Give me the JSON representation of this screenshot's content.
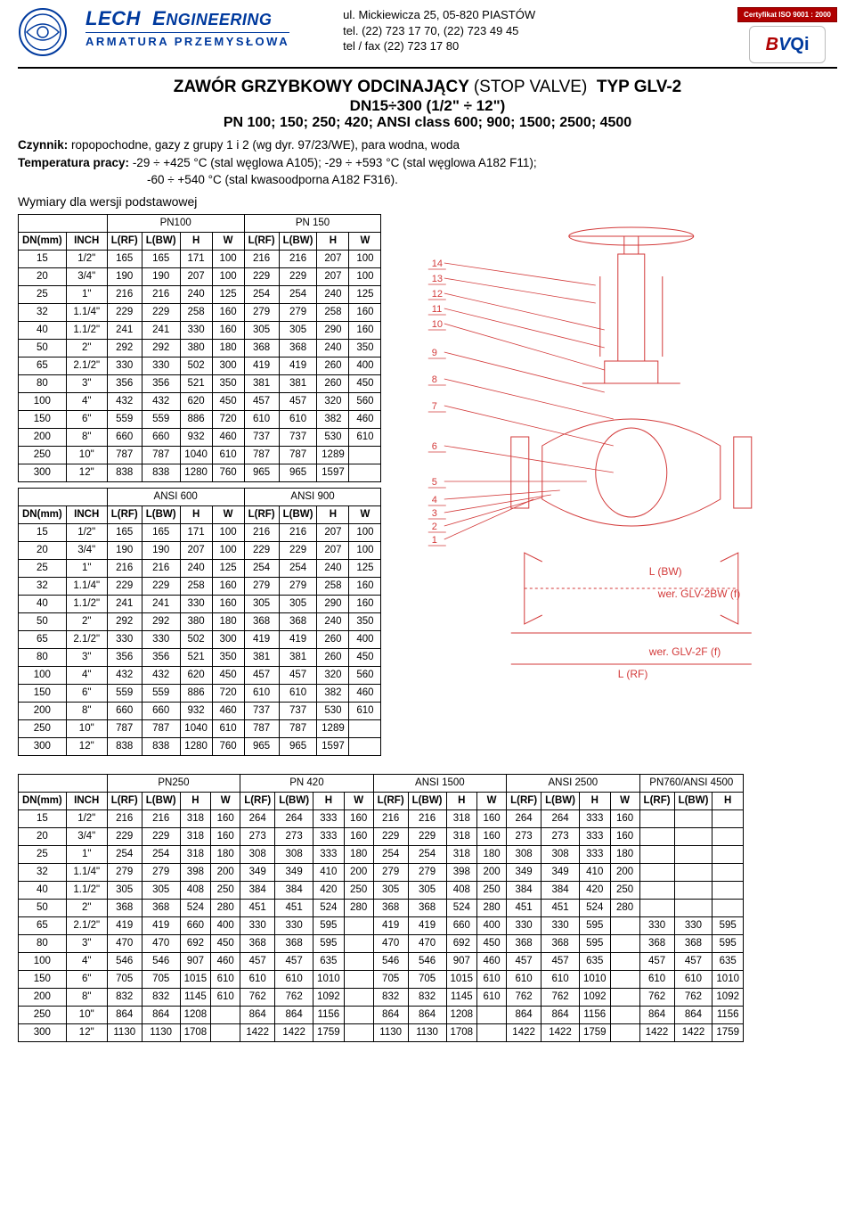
{
  "header": {
    "company_name_a": "LECH",
    "company_name_b": "E",
    "company_name_c": "NGINEERING",
    "company_sub": "ARMATURA PRZEMYSŁOWA",
    "address_l1": "ul. Mickiewicza 25,  05-820 PIASTÓW",
    "address_l2": "tel. (22) 723 17 70,  (22) 723 49 45",
    "address_l3": "tel / fax  (22) 723 17 80",
    "cert_text": "Certyfikat ISO 9001 : 2000",
    "bvqi_b": "B",
    "bvqi_v": "V",
    "bvqi_qi": "Qi"
  },
  "title": {
    "l1a": "ZAWÓR GRZYBKOWY ODCINAJĄCY",
    "l1b": "(STOP VALVE)",
    "l1c": "TYP GLV-2",
    "l2": "DN15÷300  (1/2\" ÷ 12\")",
    "l3": "PN 100; 150; 250; 420;    ANSI class 600; 900; 1500; 2500; 4500"
  },
  "spec": {
    "l1a": "Czynnik:",
    "l1b": "ropopochodne, gazy z grupy 1 i 2 (wg dyr. 97/23/WE), para wodna, woda",
    "l2a": "Temperatura pracy:",
    "l2b": "-29 ÷ +425 °C  (stal węglowa A105);  -29 ÷ +593 °C (stal węglowa A182 F11);",
    "l3": "-60 ÷ +540 °C  (stal kwasoodporna A182 F316)."
  },
  "section_label": "Wymiary dla wersji podstawowej",
  "table1": {
    "group_a": "PN100",
    "group_b": "PN 150",
    "headers": [
      "DN(mm)",
      "INCH",
      "L(RF)",
      "L(BW)",
      "H",
      "W",
      "L(RF)",
      "L(BW)",
      "H",
      "W"
    ],
    "rows": [
      [
        "15",
        "1/2\"",
        "165",
        "165",
        "171",
        "100",
        "216",
        "216",
        "207",
        "100"
      ],
      [
        "20",
        "3/4\"",
        "190",
        "190",
        "207",
        "100",
        "229",
        "229",
        "207",
        "100"
      ],
      [
        "25",
        "1\"",
        "216",
        "216",
        "240",
        "125",
        "254",
        "254",
        "240",
        "125"
      ],
      [
        "32",
        "1.1/4\"",
        "229",
        "229",
        "258",
        "160",
        "279",
        "279",
        "258",
        "160"
      ],
      [
        "40",
        "1.1/2\"",
        "241",
        "241",
        "330",
        "160",
        "305",
        "305",
        "290",
        "160"
      ],
      [
        "50",
        "2\"",
        "292",
        "292",
        "380",
        "180",
        "368",
        "368",
        "240",
        "350"
      ],
      [
        "65",
        "2.1/2\"",
        "330",
        "330",
        "502",
        "300",
        "419",
        "419",
        "260",
        "400"
      ],
      [
        "80",
        "3\"",
        "356",
        "356",
        "521",
        "350",
        "381",
        "381",
        "260",
        "450"
      ],
      [
        "100",
        "4\"",
        "432",
        "432",
        "620",
        "450",
        "457",
        "457",
        "320",
        "560"
      ],
      [
        "150",
        "6\"",
        "559",
        "559",
        "886",
        "720",
        "610",
        "610",
        "382",
        "460"
      ],
      [
        "200",
        "8\"",
        "660",
        "660",
        "932",
        "460",
        "737",
        "737",
        "530",
        "610"
      ],
      [
        "250",
        "10\"",
        "787",
        "787",
        "1040",
        "610",
        "787",
        "787",
        "1289",
        ""
      ],
      [
        "300",
        "12\"",
        "838",
        "838",
        "1280",
        "760",
        "965",
        "965",
        "1597",
        ""
      ]
    ]
  },
  "table2": {
    "group_a": "ANSI 600",
    "group_b": "ANSI 900",
    "headers": [
      "DN(mm)",
      "INCH",
      "L(RF)",
      "L(BW)",
      "H",
      "W",
      "L(RF)",
      "L(BW)",
      "H",
      "W"
    ],
    "rows": [
      [
        "15",
        "1/2\"",
        "165",
        "165",
        "171",
        "100",
        "216",
        "216",
        "207",
        "100"
      ],
      [
        "20",
        "3/4\"",
        "190",
        "190",
        "207",
        "100",
        "229",
        "229",
        "207",
        "100"
      ],
      [
        "25",
        "1\"",
        "216",
        "216",
        "240",
        "125",
        "254",
        "254",
        "240",
        "125"
      ],
      [
        "32",
        "1.1/4\"",
        "229",
        "229",
        "258",
        "160",
        "279",
        "279",
        "258",
        "160"
      ],
      [
        "40",
        "1.1/2\"",
        "241",
        "241",
        "330",
        "160",
        "305",
        "305",
        "290",
        "160"
      ],
      [
        "50",
        "2\"",
        "292",
        "292",
        "380",
        "180",
        "368",
        "368",
        "240",
        "350"
      ],
      [
        "65",
        "2.1/2\"",
        "330",
        "330",
        "502",
        "300",
        "419",
        "419",
        "260",
        "400"
      ],
      [
        "80",
        "3\"",
        "356",
        "356",
        "521",
        "350",
        "381",
        "381",
        "260",
        "450"
      ],
      [
        "100",
        "4\"",
        "432",
        "432",
        "620",
        "450",
        "457",
        "457",
        "320",
        "560"
      ],
      [
        "150",
        "6\"",
        "559",
        "559",
        "886",
        "720",
        "610",
        "610",
        "382",
        "460"
      ],
      [
        "200",
        "8\"",
        "660",
        "660",
        "932",
        "460",
        "737",
        "737",
        "530",
        "610"
      ],
      [
        "250",
        "10\"",
        "787",
        "787",
        "1040",
        "610",
        "787",
        "787",
        "1289",
        ""
      ],
      [
        "300",
        "12\"",
        "838",
        "838",
        "1280",
        "760",
        "965",
        "965",
        "1597",
        ""
      ]
    ]
  },
  "table3": {
    "groups": [
      "PN250",
      "PN 420",
      "ANSI 1500",
      "ANSI 2500",
      "PN760/ANSI 4500"
    ],
    "headers": [
      "DN(mm)",
      "INCH",
      "L(RF)",
      "L(BW)",
      "H",
      "W",
      "L(RF)",
      "L(BW)",
      "H",
      "W",
      "L(RF)",
      "L(BW)",
      "H",
      "W",
      "L(RF)",
      "L(BW)",
      "H",
      "W",
      "L(RF)",
      "L(BW)",
      "H"
    ],
    "rows": [
      [
        "15",
        "1/2\"",
        "216",
        "216",
        "318",
        "160",
        "264",
        "264",
        "333",
        "160",
        "216",
        "216",
        "318",
        "160",
        "264",
        "264",
        "333",
        "160",
        "",
        "",
        ""
      ],
      [
        "20",
        "3/4\"",
        "229",
        "229",
        "318",
        "160",
        "273",
        "273",
        "333",
        "160",
        "229",
        "229",
        "318",
        "160",
        "273",
        "273",
        "333",
        "160",
        "",
        "",
        ""
      ],
      [
        "25",
        "1\"",
        "254",
        "254",
        "318",
        "180",
        "308",
        "308",
        "333",
        "180",
        "254",
        "254",
        "318",
        "180",
        "308",
        "308",
        "333",
        "180",
        "",
        "",
        ""
      ],
      [
        "32",
        "1.1/4\"",
        "279",
        "279",
        "398",
        "200",
        "349",
        "349",
        "410",
        "200",
        "279",
        "279",
        "398",
        "200",
        "349",
        "349",
        "410",
        "200",
        "",
        "",
        ""
      ],
      [
        "40",
        "1.1/2\"",
        "305",
        "305",
        "408",
        "250",
        "384",
        "384",
        "420",
        "250",
        "305",
        "305",
        "408",
        "250",
        "384",
        "384",
        "420",
        "250",
        "",
        "",
        ""
      ],
      [
        "50",
        "2\"",
        "368",
        "368",
        "524",
        "280",
        "451",
        "451",
        "524",
        "280",
        "368",
        "368",
        "524",
        "280",
        "451",
        "451",
        "524",
        "280",
        "",
        "",
        ""
      ],
      [
        "65",
        "2.1/2\"",
        "419",
        "419",
        "660",
        "400",
        "330",
        "330",
        "595",
        "",
        "419",
        "419",
        "660",
        "400",
        "330",
        "330",
        "595",
        "",
        "330",
        "330",
        "595"
      ],
      [
        "80",
        "3\"",
        "470",
        "470",
        "692",
        "450",
        "368",
        "368",
        "595",
        "",
        "470",
        "470",
        "692",
        "450",
        "368",
        "368",
        "595",
        "",
        "368",
        "368",
        "595"
      ],
      [
        "100",
        "4\"",
        "546",
        "546",
        "907",
        "460",
        "457",
        "457",
        "635",
        "",
        "546",
        "546",
        "907",
        "460",
        "457",
        "457",
        "635",
        "",
        "457",
        "457",
        "635"
      ],
      [
        "150",
        "6\"",
        "705",
        "705",
        "1015",
        "610",
        "610",
        "610",
        "1010",
        "",
        "705",
        "705",
        "1015",
        "610",
        "610",
        "610",
        "1010",
        "",
        "610",
        "610",
        "1010"
      ],
      [
        "200",
        "8\"",
        "832",
        "832",
        "1145",
        "610",
        "762",
        "762",
        "1092",
        "",
        "832",
        "832",
        "1145",
        "610",
        "762",
        "762",
        "1092",
        "",
        "762",
        "762",
        "1092"
      ],
      [
        "250",
        "10\"",
        "864",
        "864",
        "1208",
        "",
        "864",
        "864",
        "1156",
        "",
        "864",
        "864",
        "1208",
        "",
        "864",
        "864",
        "1156",
        "",
        "864",
        "864",
        "1156"
      ],
      [
        "300",
        "12\"",
        "1130",
        "1130",
        "1708",
        "",
        "1422",
        "1422",
        "1759",
        "",
        "1130",
        "1130",
        "1708",
        "",
        "1422",
        "1422",
        "1759",
        "",
        "1422",
        "1422",
        "1759"
      ]
    ]
  },
  "diagram": {
    "callouts": [
      "14",
      "13",
      "12",
      "11",
      "10",
      "9",
      "8",
      "7",
      "6",
      "5",
      "4",
      "3",
      "2",
      "1"
    ],
    "label_lbw": "L (BW)",
    "label_lrf": "L (RF)",
    "label_glv2bw": "wer. GLV-2BW (f)",
    "label_glv2f": "wer. GLV-2F (f)",
    "color_line": "#d33a3a",
    "color_hatch": "#d8d8d8"
  }
}
